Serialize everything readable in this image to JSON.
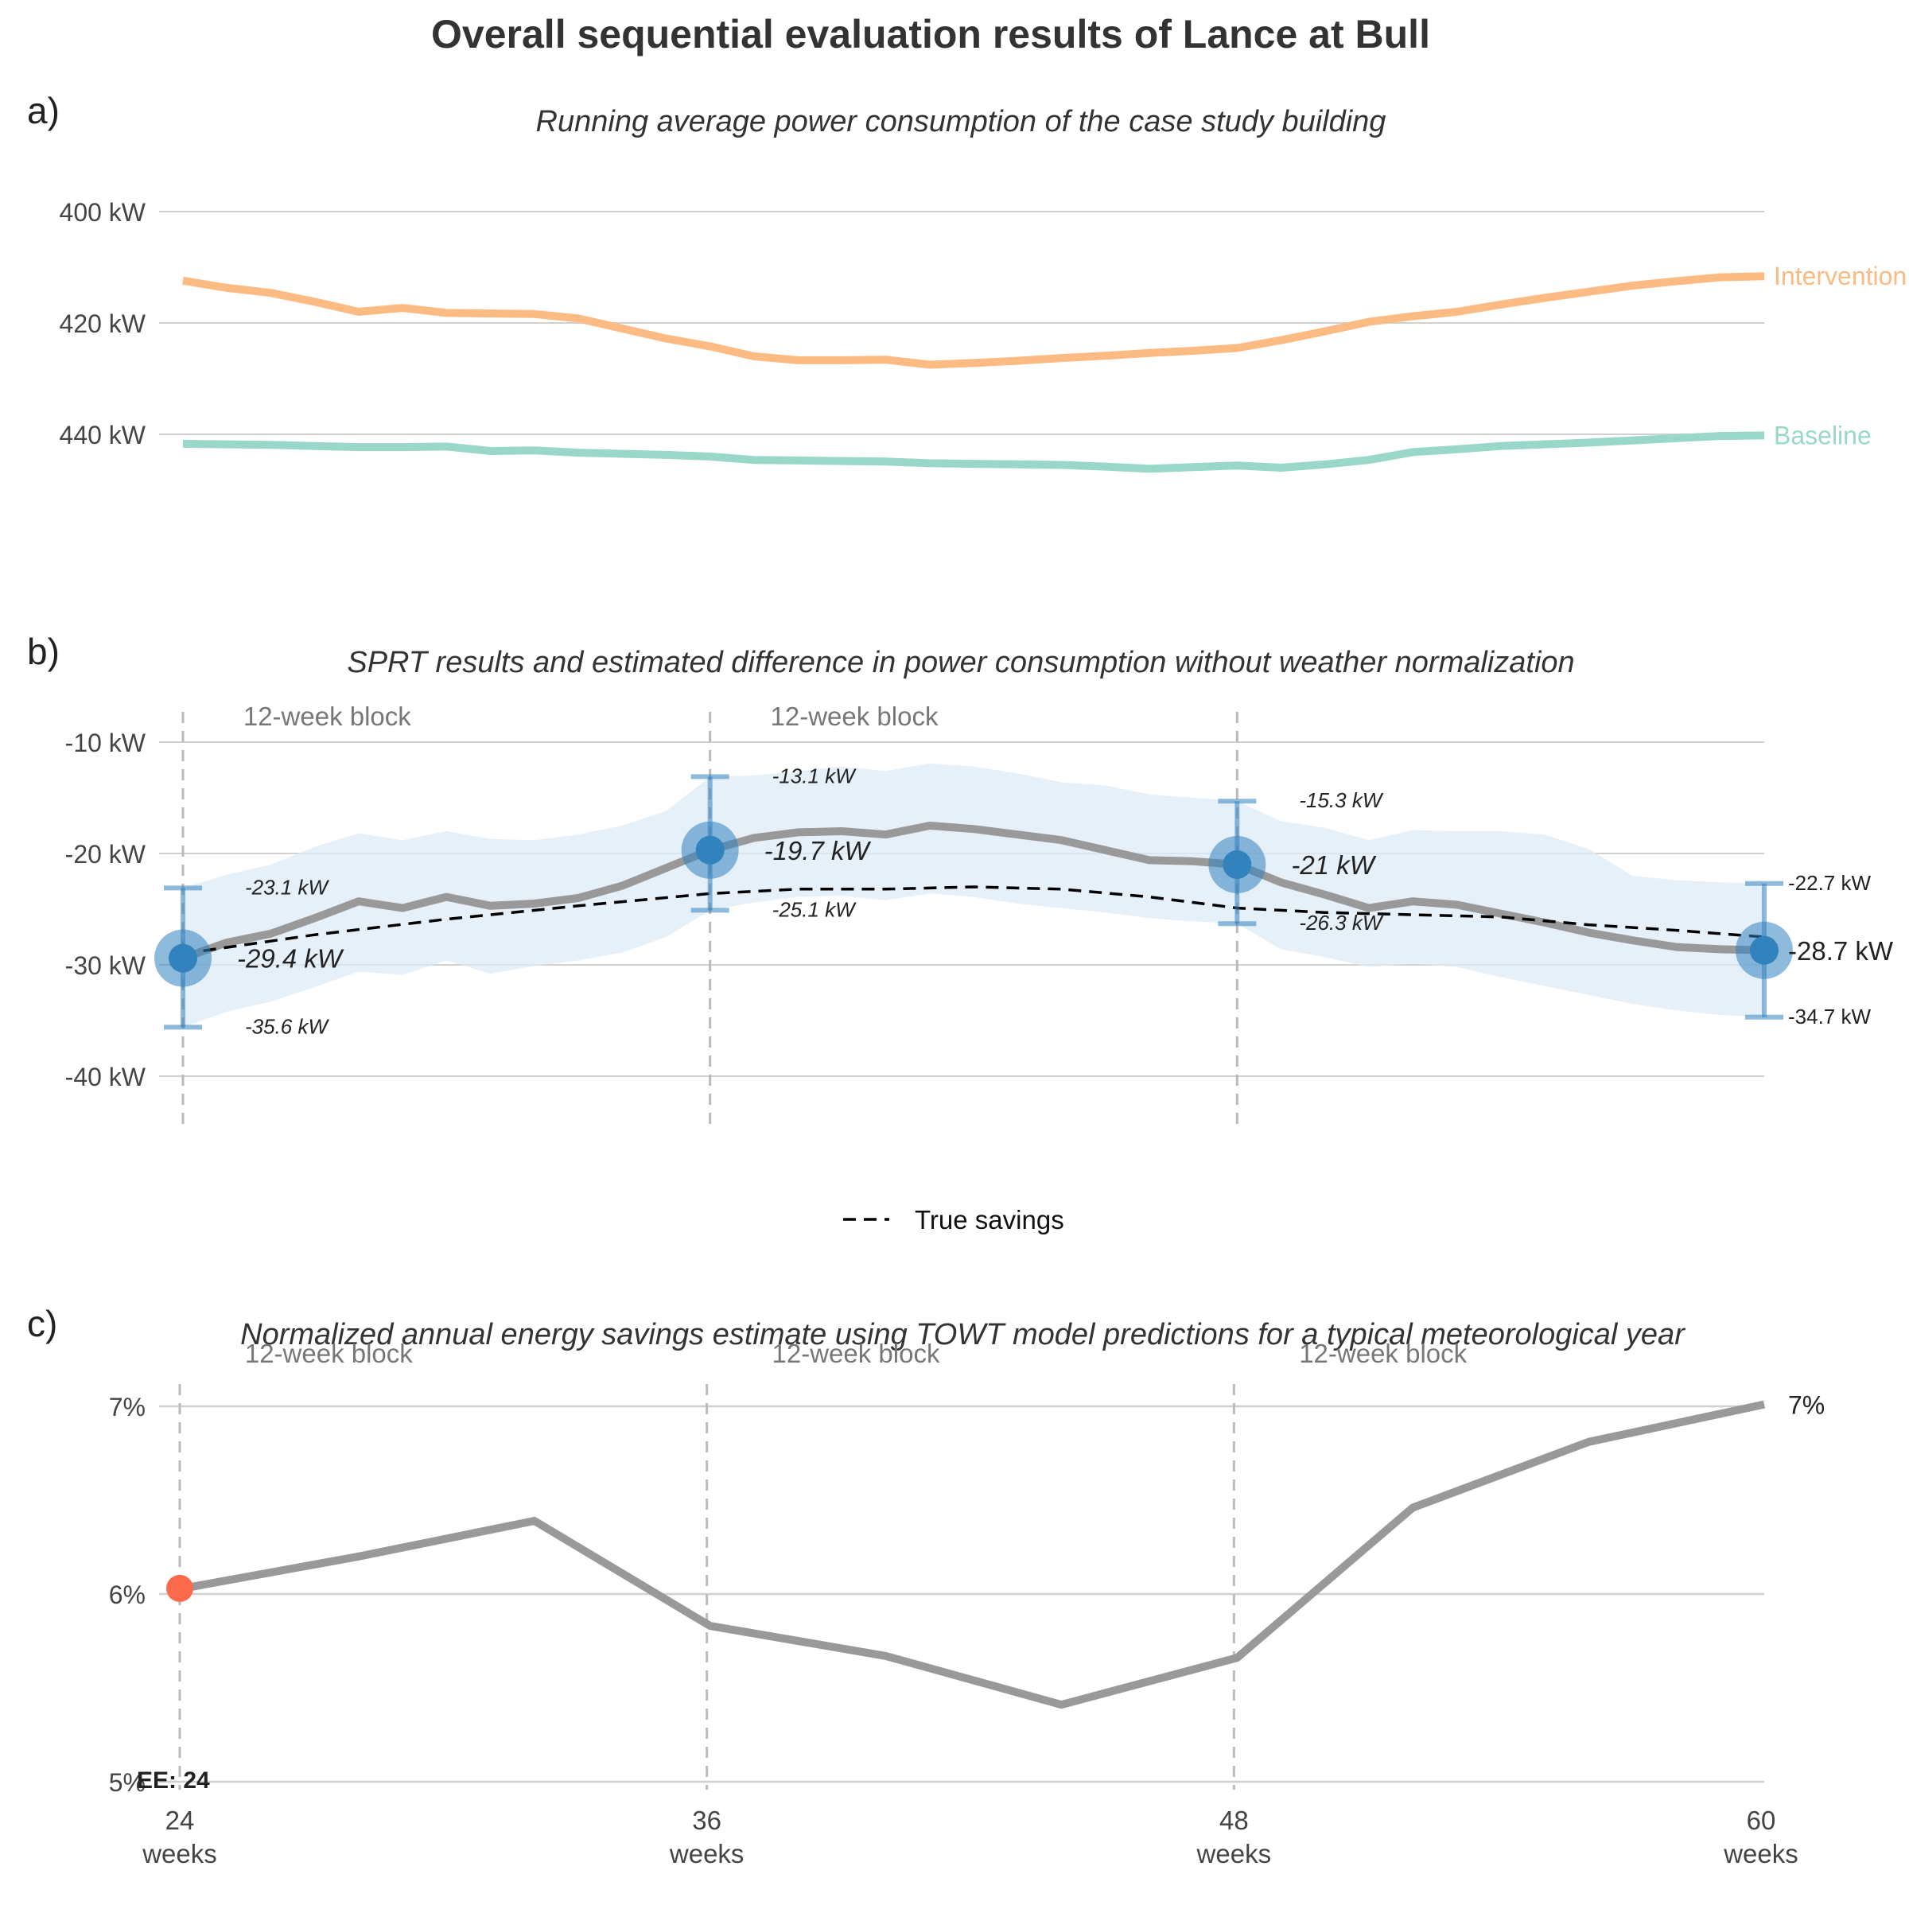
{
  "title": "Overall sequential evaluation results of Lance at Bull",
  "colors": {
    "baseline": "#99d8c9",
    "intervention": "#fdbb84",
    "estimate_line": "#999999",
    "ci_band": "#deebf7",
    "sprt_point": "#3182bd",
    "true_savings": "#000000",
    "early_end_point": "#fb6a4a",
    "grid": "#d0d0d0",
    "block_line": "#bbbbbb"
  },
  "chart_data": [
    {
      "panel": "a)",
      "type": "line",
      "title": "Running average power consumption of the case study building",
      "x_weeks": [
        24,
        25,
        26,
        27,
        28,
        29,
        30,
        31,
        32,
        33,
        34,
        35,
        36,
        37,
        38,
        39,
        40,
        41,
        42,
        43,
        44,
        45,
        46,
        47,
        48,
        49,
        50,
        51,
        52,
        53,
        54,
        55,
        56,
        57,
        58,
        59,
        60
      ],
      "series": [
        {
          "name": "Baseline",
          "values": [
            441.7,
            441.8,
            441.9,
            442.1,
            442.3,
            442.3,
            442.2,
            443.0,
            442.9,
            443.3,
            443.5,
            443.7,
            444.0,
            444.6,
            444.7,
            444.8,
            444.9,
            445.2,
            445.3,
            445.4,
            445.5,
            445.8,
            446.2,
            445.9,
            445.6,
            446.0,
            445.4,
            444.6,
            443.2,
            442.7,
            442.1,
            441.8,
            441.5,
            441.1,
            440.7,
            440.3,
            440.2
          ]
        },
        {
          "name": "Intervention",
          "values": [
            412.4,
            413.7,
            414.6,
            416.2,
            418.0,
            417.3,
            418.2,
            418.3,
            418.4,
            419.2,
            421.0,
            422.8,
            424.2,
            426.0,
            426.7,
            426.7,
            426.6,
            427.5,
            427.2,
            426.8,
            426.3,
            425.9,
            425.4,
            425.0,
            424.5,
            423.1,
            421.5,
            419.8,
            418.8,
            418.0,
            416.7,
            415.5,
            414.4,
            413.3,
            412.5,
            411.8,
            411.6
          ]
        }
      ],
      "y_ticks": [
        "440 kW",
        "420 kW",
        "400 kW"
      ],
      "ylim": [
        392,
        448
      ]
    },
    {
      "panel": "b)",
      "type": "line",
      "title": "SPRT results and estimated difference in power consumption without weather normalization",
      "x_weeks": [
        24,
        25,
        26,
        27,
        28,
        29,
        30,
        31,
        32,
        33,
        34,
        35,
        36,
        37,
        38,
        39,
        40,
        41,
        42,
        43,
        44,
        45,
        46,
        47,
        48,
        49,
        50,
        51,
        52,
        53,
        54,
        55,
        56,
        57,
        58,
        59,
        60
      ],
      "estimate": [
        -29.4,
        -28.0,
        -27.2,
        -25.8,
        -24.3,
        -24.9,
        -23.9,
        -24.7,
        -24.5,
        -24.0,
        -22.9,
        -21.3,
        -19.7,
        -18.6,
        -18.1,
        -18.0,
        -18.3,
        -17.5,
        -17.8,
        -18.3,
        -18.8,
        -19.7,
        -20.6,
        -20.7,
        -21.0,
        -22.6,
        -23.7,
        -24.9,
        -24.3,
        -24.6,
        -25.4,
        -26.2,
        -27.1,
        -27.8,
        -28.4,
        -28.6,
        -28.7
      ],
      "ci_upper": [
        -23.1,
        -21.9,
        -21.0,
        -19.4,
        -18.2,
        -18.8,
        -18.0,
        -18.7,
        -18.8,
        -18.3,
        -17.5,
        -16.2,
        -13.1,
        -13.0,
        -12.6,
        -12.2,
        -12.6,
        -11.9,
        -12.2,
        -12.8,
        -13.6,
        -13.9,
        -14.7,
        -15.0,
        -15.3,
        -17.1,
        -17.7,
        -18.8,
        -17.9,
        -18.0,
        -18.0,
        -18.3,
        -19.6,
        -22.0,
        -22.4,
        -22.6,
        -22.7
      ],
      "ci_lower": [
        -35.6,
        -34.2,
        -33.3,
        -32.0,
        -30.6,
        -30.9,
        -29.6,
        -30.8,
        -30.1,
        -29.6,
        -28.9,
        -27.5,
        -25.1,
        -24.4,
        -23.9,
        -23.8,
        -24.2,
        -23.6,
        -23.9,
        -24.5,
        -24.9,
        -25.3,
        -25.8,
        -26.1,
        -26.3,
        -28.6,
        -29.3,
        -30.2,
        -29.9,
        -30.2,
        -31.1,
        -31.9,
        -32.7,
        -33.5,
        -34.1,
        -34.5,
        -34.7
      ],
      "true_savings": {
        "name": "True savings",
        "x_weeks": [
          24,
          27,
          30,
          33,
          36,
          38,
          40,
          42,
          44,
          46,
          48,
          50,
          52,
          54,
          56,
          58,
          60
        ],
        "values": [
          -29.0,
          -27.3,
          -25.9,
          -24.7,
          -23.6,
          -23.2,
          -23.2,
          -23.0,
          -23.2,
          -23.9,
          -24.9,
          -25.3,
          -25.5,
          -25.7,
          -26.4,
          -26.9,
          -27.5
        ]
      },
      "sprt_points": [
        {
          "week": 24,
          "estimate": -29.4,
          "upper": -23.1,
          "lower": -35.6,
          "label": "-29.4 kW",
          "upper_label": "-23.1 kW",
          "lower_label": "-35.6 kW"
        },
        {
          "week": 36,
          "estimate": -19.7,
          "upper": -13.1,
          "lower": -25.1,
          "label": "-19.7 kW",
          "upper_label": "-13.1 kW",
          "lower_label": "-25.1 kW"
        },
        {
          "week": 48,
          "estimate": -21.0,
          "upper": -15.3,
          "lower": -26.3,
          "label": "-21 kW",
          "upper_label": "-15.3 kW",
          "lower_label": "-26.3 kW"
        },
        {
          "week": 60,
          "estimate": -28.7,
          "upper": -22.7,
          "lower": -34.7,
          "label": "-28.7 kW",
          "upper_label": "-22.7 kW",
          "lower_label": "-34.7 kW"
        }
      ],
      "block_labels": [
        "12-week block",
        "12-week block"
      ],
      "y_ticks": [
        "-10 kW",
        "-20 kW",
        "-30 kW",
        "-40 kW"
      ],
      "ylim": [
        -44,
        -7.5
      ]
    },
    {
      "panel": "c)",
      "type": "line",
      "title": "Normalized annual energy savings estimate using TOWT model predictions for a typical meteorological year",
      "x_weeks": [
        24,
        28,
        32,
        36,
        40,
        44,
        48,
        52,
        56,
        60
      ],
      "values": [
        6.03,
        6.2,
        6.39,
        5.83,
        5.67,
        5.41,
        5.66,
        6.46,
        6.81,
        7.01
      ],
      "end_label": "7%",
      "early_end": {
        "week": 24,
        "value": 6.03,
        "label": "EE: 24"
      },
      "block_labels": [
        "12-week block",
        "12-week block",
        "12-week block"
      ],
      "y_ticks": [
        "7%",
        "6%",
        "5%"
      ],
      "ylim": [
        5,
        7
      ]
    }
  ],
  "x_axis": {
    "ticks": [
      24,
      36,
      48,
      60
    ],
    "tick_labels": [
      "24",
      "36",
      "48",
      "60"
    ],
    "unit": "weeks"
  }
}
